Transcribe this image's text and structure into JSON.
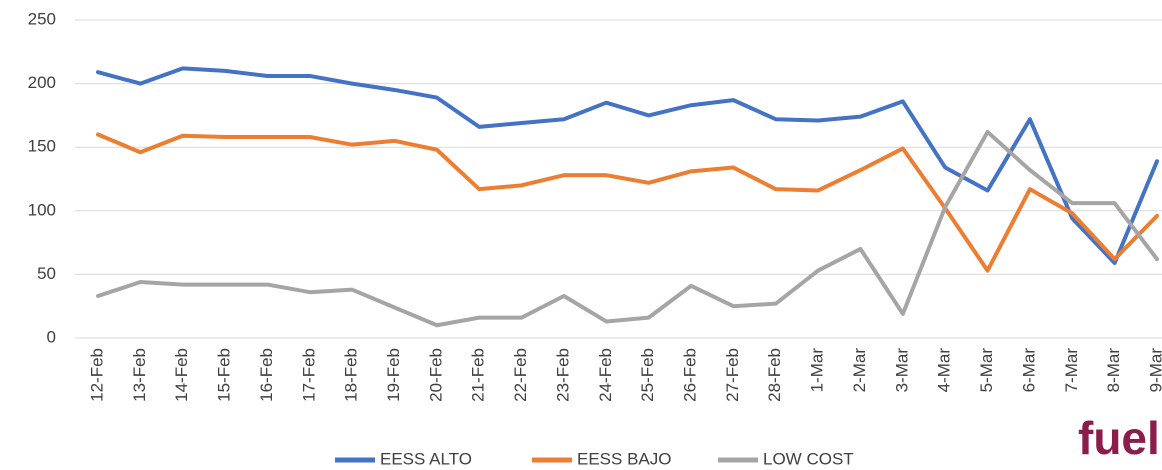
{
  "chart_data": {
    "type": "line",
    "categories": [
      "12-Feb",
      "13-Feb",
      "14-Feb",
      "15-Feb",
      "16-Feb",
      "17-Feb",
      "18-Feb",
      "19-Feb",
      "20-Feb",
      "21-Feb",
      "22-Feb",
      "23-Feb",
      "24-Feb",
      "25-Feb",
      "26-Feb",
      "27-Feb",
      "28-Feb",
      "1-Mar",
      "2-Mar",
      "3-Mar",
      "4-Mar",
      "5-Mar",
      "6-Mar",
      "7-Mar",
      "8-Mar",
      "9-Mar"
    ],
    "series": [
      {
        "name": "EESS ALTO",
        "color": "#4472c4",
        "values": [
          209,
          200,
          212,
          210,
          206,
          206,
          200,
          195,
          189,
          166,
          169,
          172,
          185,
          175,
          183,
          187,
          172,
          171,
          174,
          186,
          134,
          116,
          172,
          94,
          59,
          139
        ]
      },
      {
        "name": "EESS BAJO",
        "color": "#ed7d31",
        "values": [
          160,
          146,
          159,
          158,
          158,
          158,
          152,
          155,
          148,
          117,
          120,
          128,
          128,
          122,
          131,
          134,
          117,
          116,
          132,
          149,
          102,
          53,
          117,
          98,
          62,
          96
        ]
      },
      {
        "name": "LOW COST",
        "color": "#a5a5a5",
        "values": [
          33,
          44,
          42,
          42,
          42,
          36,
          38,
          24,
          10,
          16,
          16,
          33,
          13,
          16,
          41,
          25,
          27,
          53,
          70,
          19,
          103,
          162,
          132,
          106,
          106,
          62
        ]
      }
    ],
    "ylim": [
      0,
      250
    ],
    "yticks": [
      0,
      50,
      100,
      150,
      200,
      250
    ],
    "grid": true,
    "legend": "bottom",
    "logo": "fuel"
  }
}
